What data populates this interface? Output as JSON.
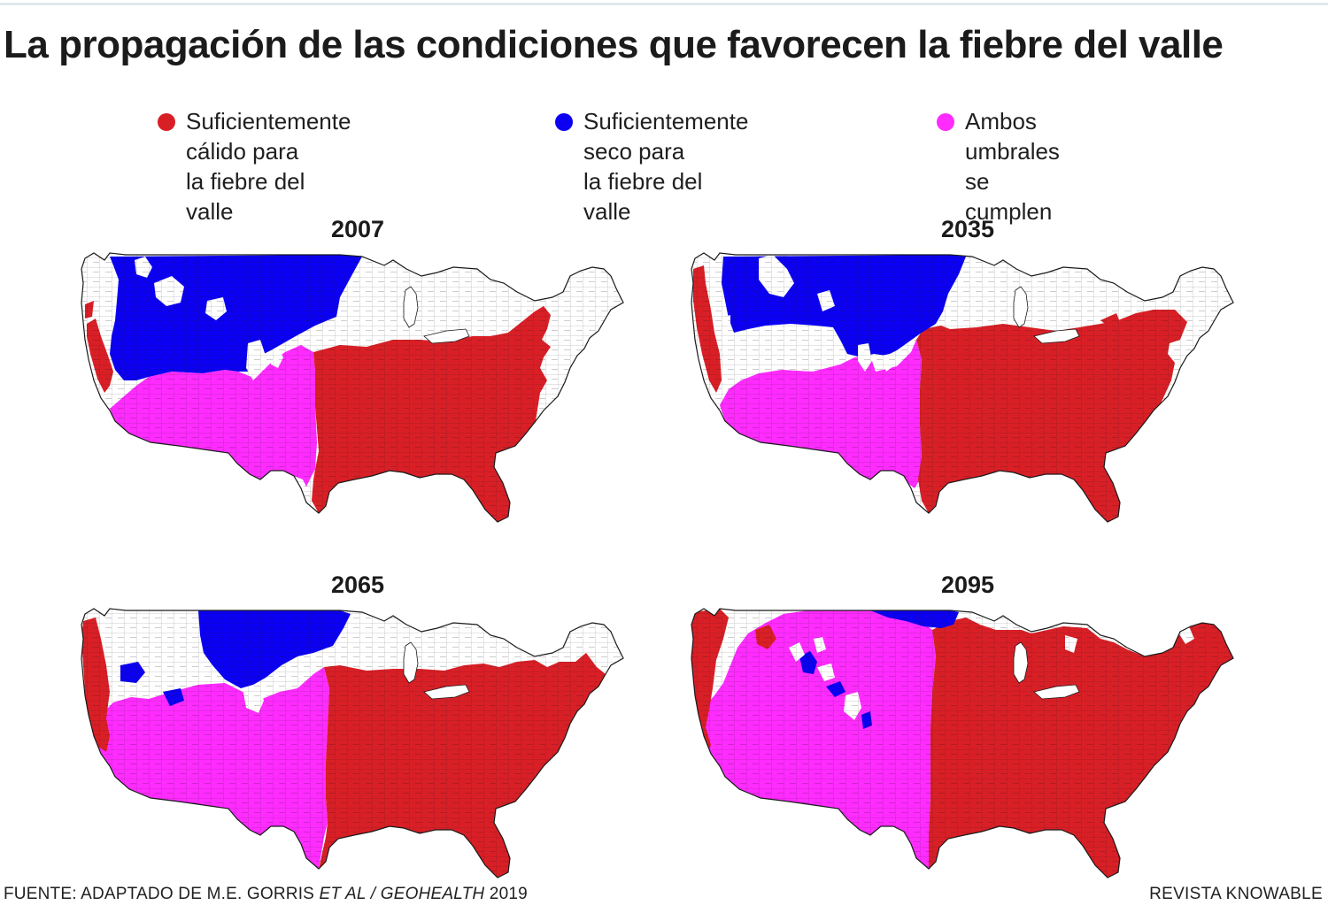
{
  "title": "La propagación de las condiciones que favorecen la fiebre del valle",
  "legend": {
    "items": [
      {
        "label": "Suficientemente cálido para\nla fiebre del valle",
        "color": "#d91f26"
      },
      {
        "label": "Suficientemente seco para\nla fiebre del valle",
        "color": "#0b00f2"
      },
      {
        "label": "Ambos umbrales\nse cumplen",
        "color": "#ff2bff"
      }
    ]
  },
  "colors": {
    "warm": "#d91f26",
    "dry": "#0b00f2",
    "both": "#ff2bff",
    "none": "#ffffff",
    "border": "#1a1a1a"
  },
  "panels": [
    {
      "year": "2007"
    },
    {
      "year": "2035"
    },
    {
      "year": "2065"
    },
    {
      "year": "2095"
    }
  ],
  "footer": {
    "source_prefix": "FUENTE: ADAPTADO DE M.E. GORRIS ",
    "source_italic": "ET AL / GEOHEALTH",
    "source_suffix": " 2019",
    "credit": "REVISTA KNOWABLE"
  }
}
